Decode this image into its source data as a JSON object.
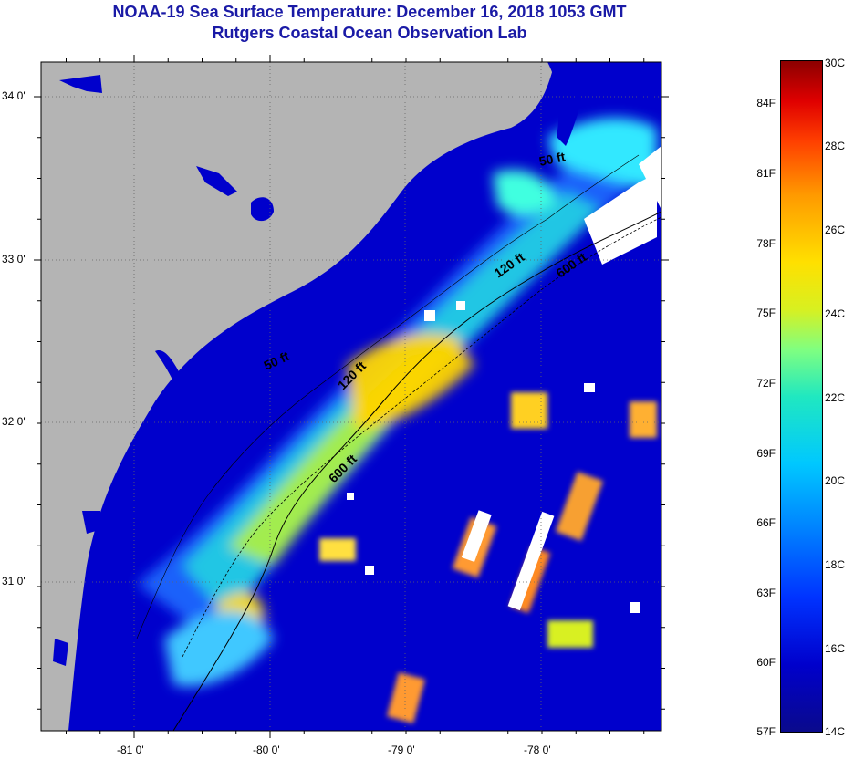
{
  "title": {
    "line1": "NOAA-19 Sea Surface Temperature:  December 16, 2018 1053 GMT",
    "line2": "Rutgers Coastal Ocean Observation Lab"
  },
  "map": {
    "lat_labels": [
      "34 0'",
      "33 0'",
      "32 0'",
      "31 0'"
    ],
    "lon_labels": [
      "-81 0'",
      "-80 0'",
      "-79 0'",
      "-78 0'"
    ],
    "depth_contours": [
      "50 ft",
      "120 ft",
      "50 ft",
      "120 ft",
      "600 ft",
      "600 ft"
    ],
    "colors": {
      "land": "#b4b4b4",
      "cold_water": "#0000cc",
      "cloud": "#ffffff"
    }
  },
  "colorbar": {
    "fahrenheit": [
      "84F",
      "81F",
      "78F",
      "75F",
      "72F",
      "69F",
      "66F",
      "63F",
      "60F",
      "57F"
    ],
    "celsius": [
      "30C",
      "28C",
      "26C",
      "24C",
      "22C",
      "20C",
      "18C",
      "16C",
      "14C"
    ]
  }
}
